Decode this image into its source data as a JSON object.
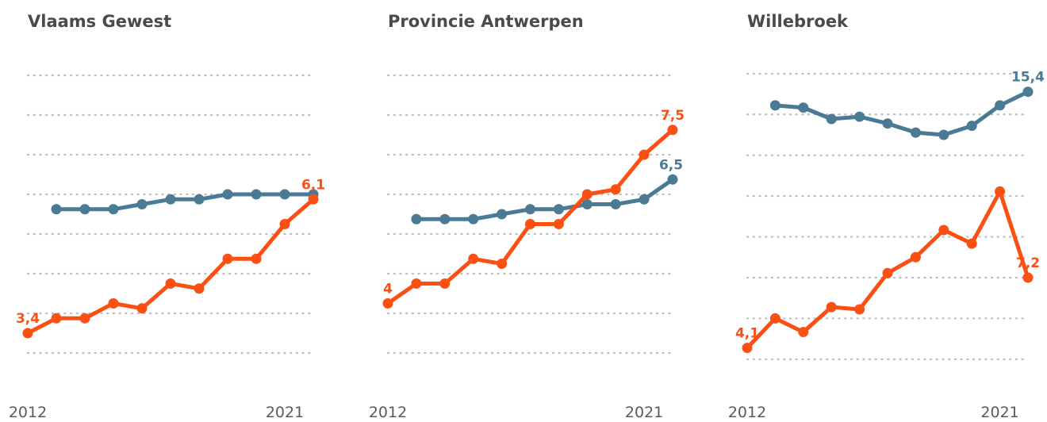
{
  "colors": {
    "orange": "#fa5014",
    "blue": "#4a7a94",
    "grid": "#bdbdbd",
    "title": "#4a4a4a",
    "axis_text": "#5a5a5a"
  },
  "chart_data": [
    {
      "type": "line",
      "title": "Vlaams Gewest",
      "x": [
        2012,
        2013,
        2014,
        2015,
        2016,
        2017,
        2018,
        2019,
        2020,
        2021,
        2022
      ],
      "x_tick_labels": [
        "2012",
        "2021"
      ],
      "xlim": [
        2012,
        2022
      ],
      "ylim": [
        2.6,
        9.0
      ],
      "gridlines": [
        3.0,
        3.8,
        4.6,
        5.4,
        6.2,
        7.0,
        7.8,
        8.6
      ],
      "grid": true,
      "series": [
        {
          "color": "#4a7a94",
          "values": [
            null,
            5.9,
            5.9,
            5.9,
            6.0,
            6.1,
            6.1,
            6.2,
            6.2,
            6.2,
            6.2
          ],
          "labels": []
        },
        {
          "color": "#fa5014",
          "values": [
            3.4,
            3.7,
            3.7,
            4.0,
            3.9,
            4.4,
            4.3,
            4.9,
            4.9,
            5.6,
            6.1
          ],
          "labels": [
            {
              "index": 0,
              "text": "3,4",
              "position": "above"
            },
            {
              "index": 10,
              "text": "6,1",
              "position": "above"
            }
          ]
        }
      ]
    },
    {
      "type": "line",
      "title": "Provincie Antwerpen",
      "x": [
        2012,
        2013,
        2014,
        2015,
        2016,
        2017,
        2018,
        2019,
        2020,
        2021,
        2022
      ],
      "x_tick_labels": [
        "2012",
        "2021"
      ],
      "xlim": [
        2012,
        2022
      ],
      "ylim": [
        2.6,
        9.0
      ],
      "gridlines": [
        3.0,
        3.8,
        4.6,
        5.4,
        6.2,
        7.0,
        7.8,
        8.6
      ],
      "grid": true,
      "series": [
        {
          "color": "#4a7a94",
          "values": [
            null,
            5.7,
            5.7,
            5.7,
            5.8,
            5.9,
            5.9,
            6.0,
            6.0,
            6.1,
            6.5
          ],
          "labels": [
            {
              "index": 10,
              "text": "6,5",
              "position": "right"
            }
          ]
        },
        {
          "color": "#fa5014",
          "values": [
            4.0,
            4.4,
            4.4,
            4.9,
            4.8,
            5.6,
            5.6,
            6.2,
            6.3,
            7.0,
            7.5
          ],
          "labels": [
            {
              "index": 0,
              "text": "4",
              "position": "above"
            },
            {
              "index": 10,
              "text": "7,5",
              "position": "above"
            }
          ]
        }
      ]
    },
    {
      "type": "line",
      "title": "Willebroek",
      "x": [
        2012,
        2013,
        2014,
        2015,
        2016,
        2017,
        2018,
        2019,
        2020,
        2021,
        2022
      ],
      "x_tick_labels": [
        "2012",
        "2021"
      ],
      "xlim": [
        2012,
        2022
      ],
      "ylim": [
        3.0,
        17.0
      ],
      "gridlines": [
        3.6,
        5.4,
        7.2,
        9.0,
        10.8,
        12.6,
        14.4,
        16.2
      ],
      "grid": true,
      "series": [
        {
          "color": "#4a7a94",
          "values": [
            null,
            14.8,
            14.7,
            14.2,
            14.3,
            14.0,
            13.6,
            13.5,
            13.9,
            14.8,
            15.4
          ],
          "labels": [
            {
              "index": 10,
              "text": "15,4",
              "position": "above"
            }
          ]
        },
        {
          "color": "#fa5014",
          "values": [
            4.1,
            5.4,
            4.8,
            5.9,
            5.8,
            7.4,
            8.1,
            9.3,
            8.7,
            11.0,
            7.2
          ],
          "labels": [
            {
              "index": 0,
              "text": "4,1",
              "position": "above"
            },
            {
              "index": 10,
              "text": "7,2",
              "position": "above"
            }
          ]
        }
      ]
    }
  ]
}
